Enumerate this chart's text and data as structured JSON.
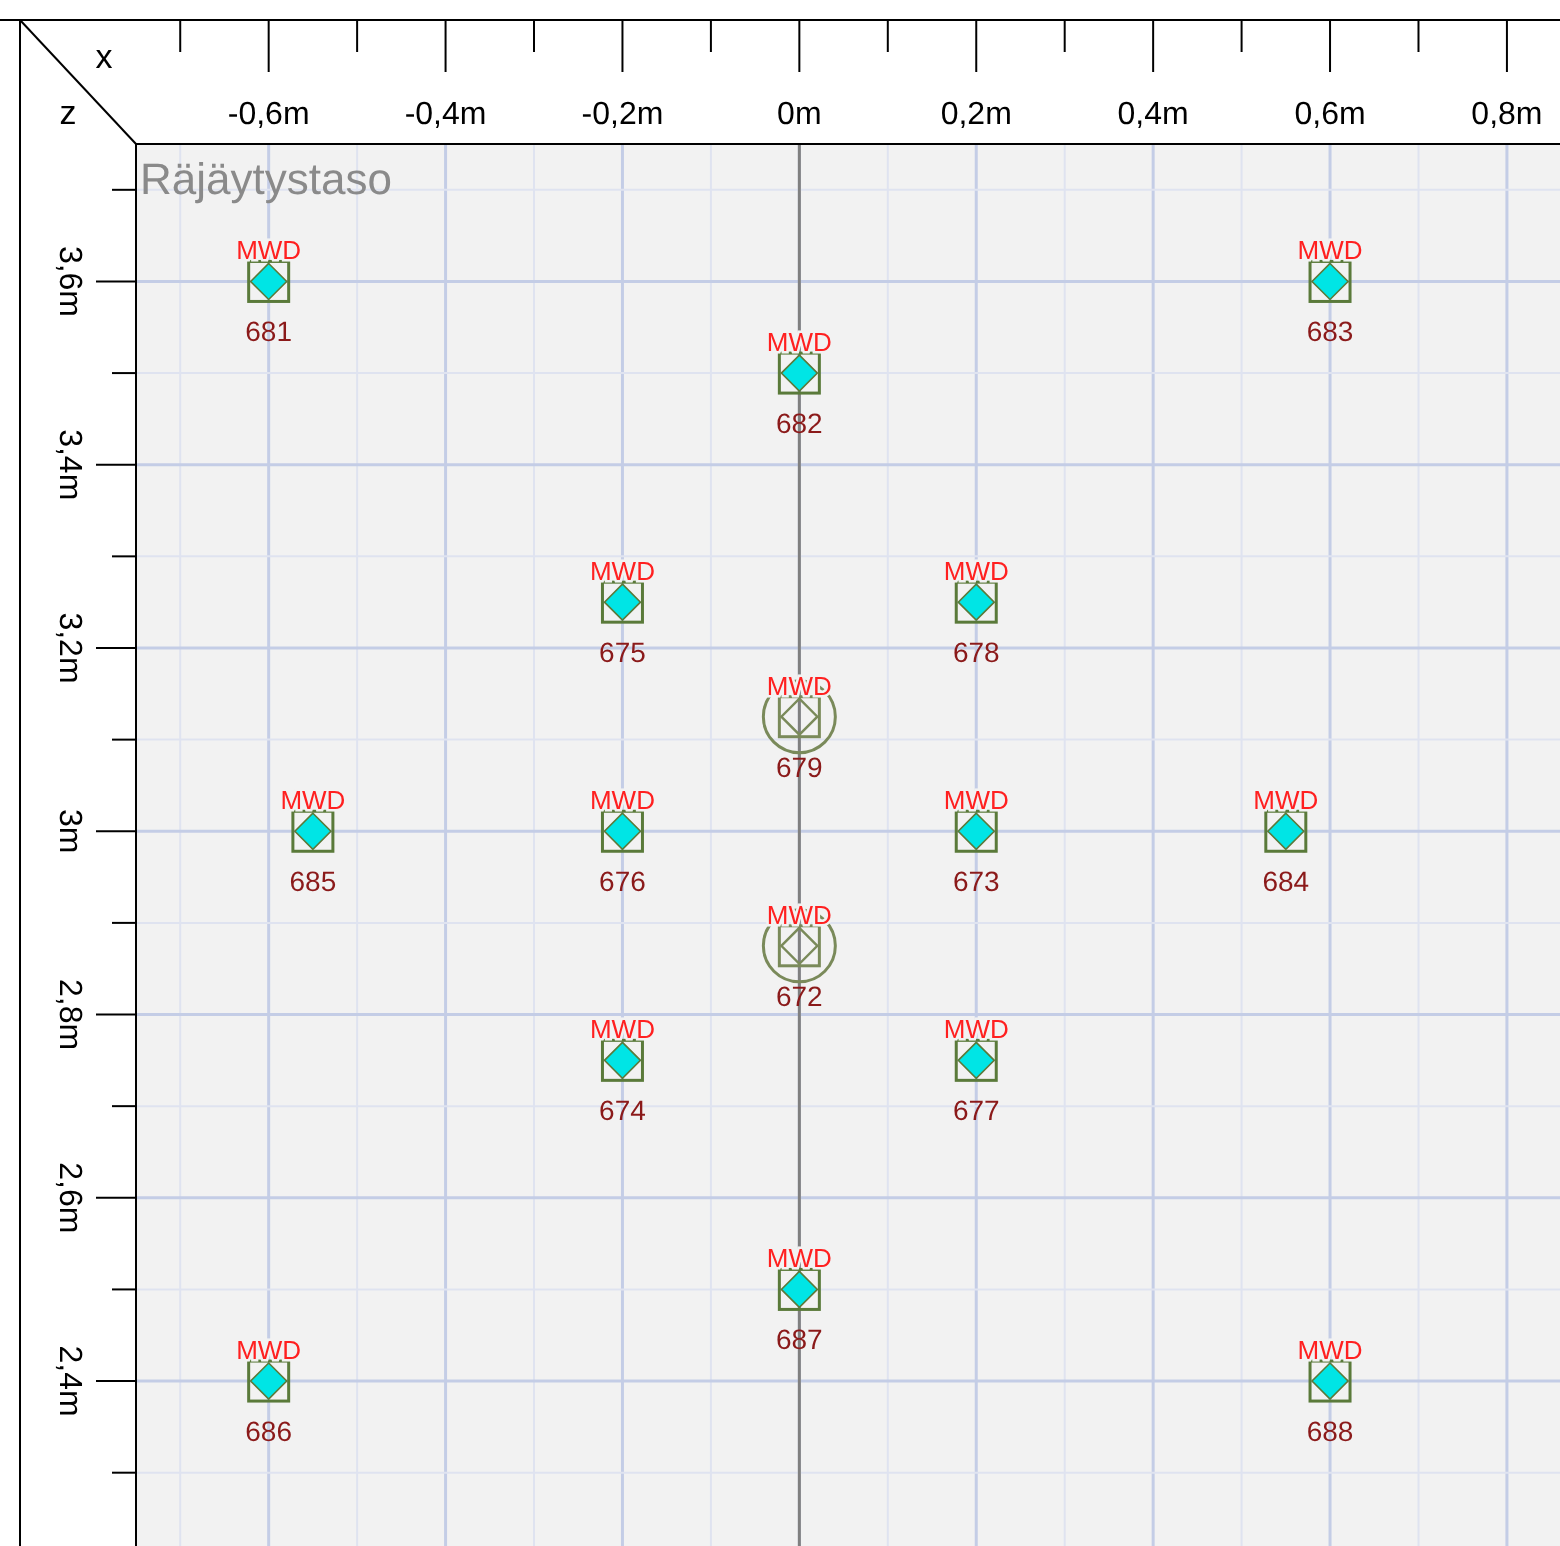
{
  "chart_data": {
    "type": "scatter",
    "title": "Räjäytystaso",
    "xlabel": "x",
    "ylabel": "z",
    "xlim": [
      -0.75,
      0.86
    ],
    "ylim": [
      2.22,
      3.75
    ],
    "xticks": [
      {
        "value": -0.7,
        "label": null
      },
      {
        "value": -0.6,
        "label": "-0,6m"
      },
      {
        "value": -0.5,
        "label": null
      },
      {
        "value": -0.4,
        "label": "-0,4m"
      },
      {
        "value": -0.3,
        "label": null
      },
      {
        "value": -0.2,
        "label": "-0,2m"
      },
      {
        "value": -0.1,
        "label": null
      },
      {
        "value": 0,
        "label": "0m"
      },
      {
        "value": 0.1,
        "label": null
      },
      {
        "value": 0.2,
        "label": "0,2m"
      },
      {
        "value": 0.3,
        "label": null
      },
      {
        "value": 0.4,
        "label": "0,4m"
      },
      {
        "value": 0.5,
        "label": null
      },
      {
        "value": 0.6,
        "label": "0,6m"
      },
      {
        "value": 0.7,
        "label": null
      },
      {
        "value": 0.8,
        "label": "0,8m"
      }
    ],
    "yticks": [
      {
        "value": 2.3,
        "label": null
      },
      {
        "value": 2.4,
        "label": "2,4m"
      },
      {
        "value": 2.5,
        "label": null
      },
      {
        "value": 2.6,
        "label": "2,6m"
      },
      {
        "value": 2.7,
        "label": null
      },
      {
        "value": 2.8,
        "label": "2,8m"
      },
      {
        "value": 2.9,
        "label": null
      },
      {
        "value": 3.0,
        "label": "3m"
      },
      {
        "value": 3.1,
        "label": null
      },
      {
        "value": 3.2,
        "label": "3,2m"
      },
      {
        "value": 3.3,
        "label": null
      },
      {
        "value": 3.4,
        "label": "3,4m"
      },
      {
        "value": 3.5,
        "label": null
      },
      {
        "value": 3.6,
        "label": "3,6m"
      },
      {
        "value": 3.7,
        "label": null
      }
    ],
    "grid": true,
    "ref_lines": [
      {
        "axis": "x",
        "value": 0,
        "color": "#808080"
      }
    ],
    "series": [
      {
        "type": "scatter",
        "marker": "diamond",
        "color": "#00e5e5",
        "x": [
          -0.6,
          0.6,
          0,
          -0.2,
          0.2,
          -0.55,
          -0.2,
          0.2,
          0.55,
          -0.2,
          0.2,
          0,
          -0.6,
          0.6
        ],
        "values": [
          3.6,
          3.6,
          3.5,
          3.25,
          3.25,
          3.0,
          3.0,
          3.0,
          3.0,
          2.75,
          2.75,
          2.5,
          2.4,
          2.4
        ]
      },
      {
        "type": "scatter",
        "marker": "circle",
        "color": "#7a8a5a",
        "x": [
          0,
          0
        ],
        "values": [
          3.125,
          2.875
        ]
      }
    ],
    "annotations": [
      {
        "text": "MWD",
        "x": -0.6,
        "y": 3.6
      },
      {
        "text": "681",
        "x": -0.6,
        "y": 3.6
      },
      {
        "text": "MWD",
        "x": 0.6,
        "y": 3.6
      },
      {
        "text": "683",
        "x": 0.6,
        "y": 3.6
      },
      {
        "text": "MWD",
        "x": 0,
        "y": 3.5
      },
      {
        "text": "682",
        "x": 0,
        "y": 3.5
      },
      {
        "text": "MWD",
        "x": -0.2,
        "y": 3.25
      },
      {
        "text": "675",
        "x": -0.2,
        "y": 3.25
      },
      {
        "text": "MWD",
        "x": 0.2,
        "y": 3.25
      },
      {
        "text": "678",
        "x": 0.2,
        "y": 3.25
      },
      {
        "text": "MWD",
        "x": 0,
        "y": 3.125
      },
      {
        "text": "679",
        "x": 0,
        "y": 3.125
      },
      {
        "text": "MWD",
        "x": -0.55,
        "y": 3.0
      },
      {
        "text": "685",
        "x": -0.55,
        "y": 3.0
      },
      {
        "text": "MWD",
        "x": -0.2,
        "y": 3.0
      },
      {
        "text": "676",
        "x": -0.2,
        "y": 3.0
      },
      {
        "text": "MWD",
        "x": 0.2,
        "y": 3.0
      },
      {
        "text": "673",
        "x": 0.2,
        "y": 3.0
      },
      {
        "text": "MWD",
        "x": 0.55,
        "y": 3.0
      },
      {
        "text": "684",
        "x": 0.55,
        "y": 3.0
      },
      {
        "text": "MWD",
        "x": 0,
        "y": 2.875
      },
      {
        "text": "672",
        "x": 0,
        "y": 2.875
      },
      {
        "text": "MWD",
        "x": -0.2,
        "y": 2.75
      },
      {
        "text": "674",
        "x": -0.2,
        "y": 2.75
      },
      {
        "text": "MWD",
        "x": 0.2,
        "y": 2.75
      },
      {
        "text": "677",
        "x": 0.2,
        "y": 2.75
      },
      {
        "text": "MWD",
        "x": 0,
        "y": 2.5
      },
      {
        "text": "687",
        "x": 0,
        "y": 2.5
      },
      {
        "text": "MWD",
        "x": -0.6,
        "y": 2.4
      },
      {
        "text": "686",
        "x": -0.6,
        "y": 2.4
      },
      {
        "text": "MWD",
        "x": 0.6,
        "y": 2.4
      },
      {
        "text": "688",
        "x": 0.6,
        "y": 2.4
      }
    ]
  }
}
